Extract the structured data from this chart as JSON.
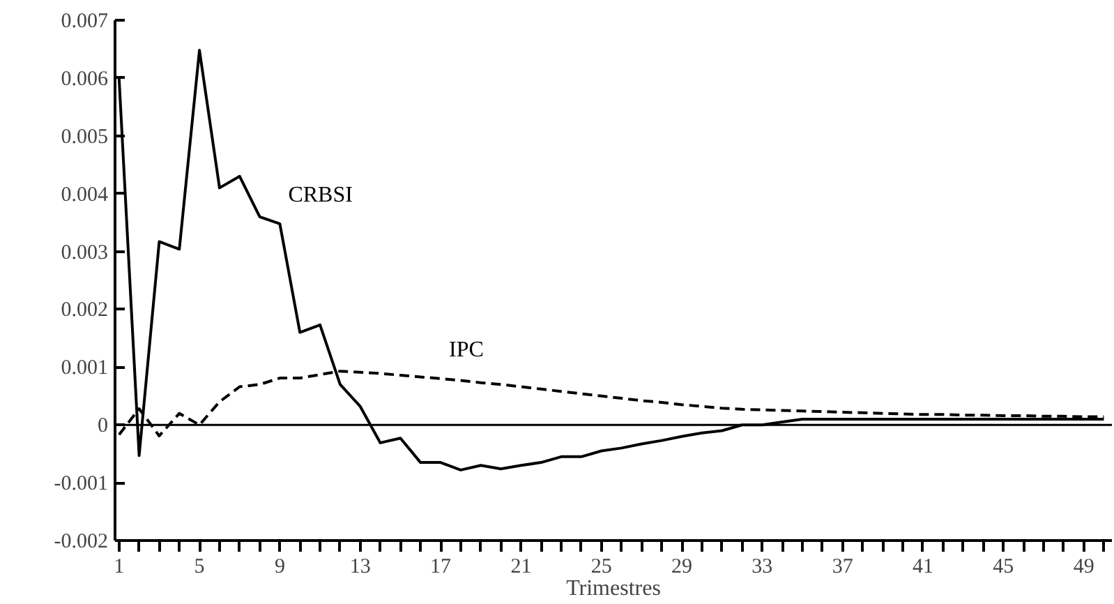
{
  "chart_data": {
    "type": "line",
    "xlabel": "Trimestres",
    "x": [
      1,
      2,
      3,
      4,
      5,
      6,
      7,
      8,
      9,
      10,
      11,
      12,
      13,
      14,
      15,
      16,
      17,
      18,
      19,
      20,
      21,
      22,
      23,
      24,
      25,
      26,
      27,
      28,
      29,
      30,
      31,
      32,
      33,
      34,
      35,
      36,
      37,
      38,
      39,
      40,
      41,
      42,
      43,
      44,
      45,
      46,
      47,
      48,
      49,
      50
    ],
    "series": [
      {
        "name": "CRBSI",
        "color": "#000000",
        "line_style": "solid",
        "values": [
          0.006,
          -0.00053,
          0.00317,
          0.00304,
          0.00648,
          0.0041,
          0.0043,
          0.0036,
          0.00348,
          0.0016,
          0.00173,
          0.0007,
          0.00032,
          -0.00031,
          -0.00023,
          -0.00065,
          -0.00065,
          -0.00078,
          -0.0007,
          -0.00076,
          -0.0007,
          -0.00065,
          -0.00055,
          -0.00055,
          -0.00045,
          -0.0004,
          -0.00033,
          -0.00027,
          -0.0002,
          -0.00014,
          -0.0001,
          0,
          0,
          5e-05,
          0.0001,
          0.0001,
          0.0001,
          0.0001,
          0.0001,
          0.0001,
          0.0001,
          0.0001,
          0.0001,
          0.0001,
          0.0001,
          0.0001,
          0.0001,
          0.0001,
          0.0001,
          0.0001
        ]
      },
      {
        "name": "IPC",
        "color": "#000000",
        "line_style": "dashed",
        "values": [
          -0.00017,
          0.00028,
          -0.00019,
          0.0002,
          0,
          0.0004,
          0.00066,
          0.0007,
          0.00081,
          0.00081,
          0.00087,
          0.00093,
          0.00091,
          0.00089,
          0.00086,
          0.00083,
          0.0008,
          0.00077,
          0.00073,
          0.0007,
          0.00066,
          0.00062,
          0.00058,
          0.00054,
          0.0005,
          0.00046,
          0.00042,
          0.00039,
          0.00035,
          0.00032,
          0.00029,
          0.00027,
          0.00026,
          0.00025,
          0.00024,
          0.00023,
          0.00022,
          0.00021,
          0.0002,
          0.00019,
          0.00018,
          0.00018,
          0.00017,
          0.00017,
          0.00016,
          0.00016,
          0.00015,
          0.00015,
          0.00014,
          0.00014
        ]
      }
    ],
    "xlim": [
      0.8,
      50.4
    ],
    "xticks": [
      1,
      {
        "value": 2,
        "label": null
      },
      {
        "value": 3,
        "label": null
      },
      {
        "value": 4,
        "label": null
      },
      5,
      {
        "value": 6,
        "label": null
      },
      {
        "value": 7,
        "label": null
      },
      {
        "value": 8,
        "label": null
      },
      9,
      {
        "value": 10,
        "label": null
      },
      {
        "value": 11,
        "label": null
      },
      {
        "value": 12,
        "label": null
      },
      13,
      {
        "value": 14,
        "label": null
      },
      {
        "value": 15,
        "label": null
      },
      {
        "value": 16,
        "label": null
      },
      17,
      {
        "value": 18,
        "label": null
      },
      {
        "value": 19,
        "label": null
      },
      {
        "value": 20,
        "label": null
      },
      21,
      {
        "value": 22,
        "label": null
      },
      {
        "value": 23,
        "label": null
      },
      {
        "value": 24,
        "label": null
      },
      25,
      {
        "value": 26,
        "label": null
      },
      {
        "value": 27,
        "label": null
      },
      {
        "value": 28,
        "label": null
      },
      29,
      {
        "value": 30,
        "label": null
      },
      {
        "value": 31,
        "label": null
      },
      {
        "value": 32,
        "label": null
      },
      33,
      {
        "value": 34,
        "label": null
      },
      {
        "value": 35,
        "label": null
      },
      {
        "value": 36,
        "label": null
      },
      37,
      {
        "value": 38,
        "label": null
      },
      {
        "value": 39,
        "label": null
      },
      {
        "value": 40,
        "label": null
      },
      41,
      {
        "value": 42,
        "label": null
      },
      {
        "value": 43,
        "label": null
      },
      {
        "value": 44,
        "label": null
      },
      45,
      {
        "value": 46,
        "label": null
      },
      {
        "value": 47,
        "label": null
      },
      {
        "value": 48,
        "label": null
      },
      49,
      {
        "value": 50,
        "label": null
      }
    ],
    "ylim": [
      -0.002,
      0.007
    ],
    "yticks": [
      -0.002,
      -0.001,
      0,
      0.001,
      0.002,
      0.003,
      0.004,
      0.005,
      0.006,
      0.007
    ],
    "ref_lines": [
      {
        "axis": "y",
        "value": 0,
        "label": null
      }
    ],
    "grid": false,
    "marker": "none"
  }
}
